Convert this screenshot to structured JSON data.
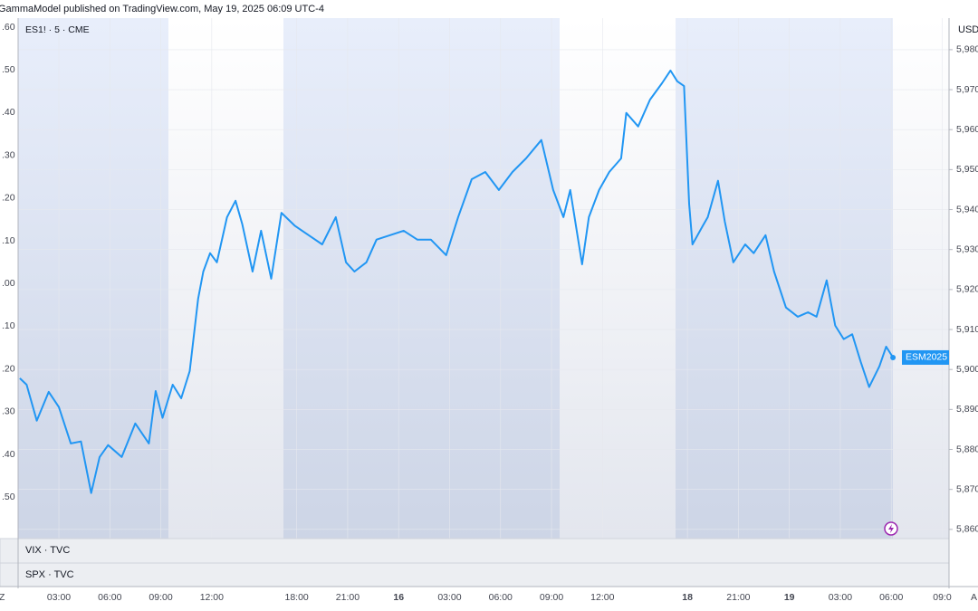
{
  "header": "GammaModel published on TradingView.com, May 19, 2025 06:09 UTC-4",
  "symbol": "ES1! · 5 · CME",
  "currency": "USD",
  "panes": [
    "VIX · TVC",
    "SPX · TVC"
  ],
  "left_axis_labels": [
    ".60",
    ".50",
    ".40",
    ".30",
    ".20",
    ".10",
    ".00",
    ".10",
    ".20",
    ".30",
    ".40",
    ".50"
  ],
  "corner_labels": [
    "Z",
    "A"
  ],
  "chart_data": {
    "type": "line",
    "x": [
      0.7,
      1.1,
      1.7,
      2.4,
      3,
      3.7,
      4.3,
      4.9,
      5.4,
      5.9,
      6.7,
      7.5,
      8.3,
      8.7,
      9.1,
      9.7,
      10.2,
      10.7,
      11.2,
      11.5,
      11.9,
      12.3,
      12.9,
      13.4,
      13.8,
      14.4,
      14.9,
      15.5,
      16.1,
      16.9,
      17.7,
      18.5,
      19.3,
      19.9,
      20.4,
      21.1,
      21.7,
      22.5,
      23.3,
      24.1,
      24.9,
      25.8,
      26.5,
      27.3,
      28.1,
      28.9,
      29.7,
      30.5,
      31.4,
      32.1,
      32.7,
      33.1,
      33.8,
      34.2,
      34.8,
      35.4,
      36.1,
      36.4,
      37.1,
      37.8,
      38.5,
      39,
      39.4,
      39.8,
      40.1,
      40.3,
      40.9,
      41.2,
      41.8,
      42.2,
      42.7,
      43.4,
      43.9,
      44.6,
      45.1,
      45.8,
      46.5,
      47.1,
      47.6,
      48.2,
      48.7,
      49.2,
      49.7,
      50.2,
      50.7,
      51.3,
      51.7,
      52.1
    ],
    "series": [
      {
        "name": "ESM2025",
        "color": "#2196f3",
        "values": [
          5897.8,
          5896.2,
          5887.2,
          5894.4,
          5890.6,
          5881.5,
          5882,
          5869.1,
          5878.1,
          5881.1,
          5878.1,
          5886.5,
          5881.5,
          5894.6,
          5887.9,
          5896.2,
          5892.8,
          5899.6,
          5917.7,
          5924.5,
          5929.1,
          5926.8,
          5938.1,
          5942.2,
          5936.3,
          5924.5,
          5934.7,
          5922.7,
          5939.2,
          5935.9,
          5933.6,
          5931.3,
          5938.1,
          5926.8,
          5924.5,
          5926.8,
          5932.5,
          5933.6,
          5934.7,
          5932.5,
          5932.5,
          5928.6,
          5938.1,
          5947.6,
          5949.4,
          5944.9,
          5949.4,
          5952.8,
          5957.4,
          5944.9,
          5938.1,
          5944.9,
          5926.3,
          5938.1,
          5944.9,
          5949.4,
          5952.8,
          5964.2,
          5960.8,
          5967.5,
          5971.6,
          5974.8,
          5972.1,
          5970.9,
          5941.5,
          5931.3,
          5935.9,
          5938.1,
          5947.2,
          5937,
          5926.8,
          5931.3,
          5929.1,
          5933.6,
          5924.5,
          5915.5,
          5913.2,
          5914.3,
          5913.2,
          5922.3,
          5911,
          5907.6,
          5908.8,
          5901.9,
          5895.6,
          5900.8,
          5905.7,
          5903
        ]
      }
    ],
    "xlim": [
      0.6,
      55.4
    ],
    "xticks": [
      {
        "value": 3,
        "label": "03:00"
      },
      {
        "value": 6,
        "label": "06:00"
      },
      {
        "value": 9,
        "label": "09:00"
      },
      {
        "value": 12,
        "label": "12:00"
      },
      {
        "value": 17,
        "label": "18:00"
      },
      {
        "value": 20,
        "label": "21:00"
      },
      {
        "value": 23,
        "label": "16"
      },
      {
        "value": 26,
        "label": "03:00"
      },
      {
        "value": 29,
        "label": "06:00"
      },
      {
        "value": 32,
        "label": "09:00"
      },
      {
        "value": 35,
        "label": "12:00"
      },
      {
        "value": 40,
        "label": "18"
      },
      {
        "value": 43,
        "label": "21:00"
      },
      {
        "value": 46,
        "label": "19"
      },
      {
        "value": 49,
        "label": "03:00"
      },
      {
        "value": 52,
        "label": "06:00"
      },
      {
        "value": 55,
        "label": "09:0"
      }
    ],
    "ylim": [
      5857.7,
      5987.9
    ],
    "yticks": [
      {
        "value": 5860,
        "label": "5,860"
      },
      {
        "value": 5870,
        "label": "5,870"
      },
      {
        "value": 5880,
        "label": "5,880"
      },
      {
        "value": 5890,
        "label": "5,890"
      },
      {
        "value": 5900,
        "label": "5,900"
      },
      {
        "value": 5910,
        "label": "5,910"
      },
      {
        "value": 5920,
        "label": "5,920"
      },
      {
        "value": 5930,
        "label": "5,930"
      },
      {
        "value": 5940,
        "label": "5,940"
      },
      {
        "value": 5950,
        "label": "5,950"
      },
      {
        "value": 5960,
        "label": "5,960"
      },
      {
        "value": 5970,
        "label": "5,970"
      },
      {
        "value": 5980,
        "label": "5,980"
      }
    ],
    "grid": true
  }
}
